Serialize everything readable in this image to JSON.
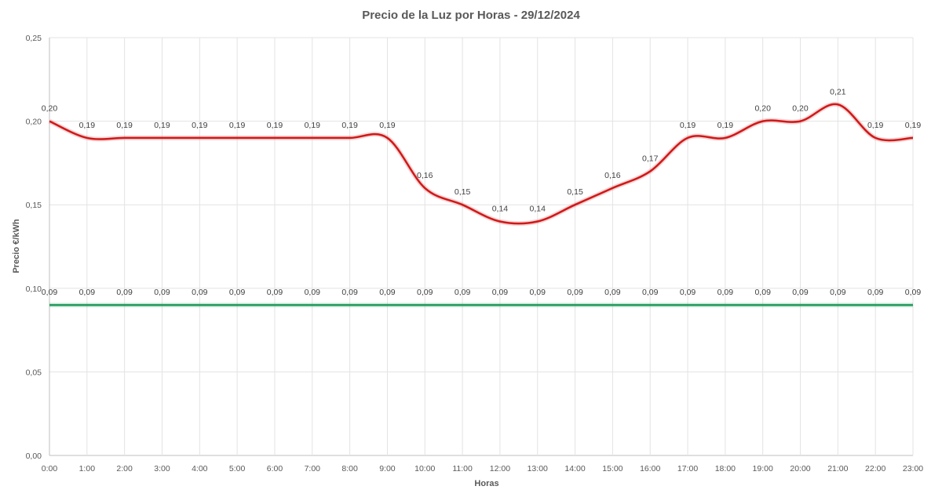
{
  "chart_data": {
    "type": "line",
    "title": "Precio de la Luz por Horas - 29/12/2024",
    "xlabel": "Horas",
    "ylabel": "Precio €/kWh",
    "ylim": [
      0,
      0.25
    ],
    "yticks": [
      "0,00",
      "0,05",
      "0,10",
      "0,15",
      "0,20",
      "0,25"
    ],
    "grid": true,
    "legend": "none",
    "smooth": true,
    "categories": [
      "0:00",
      "1:00",
      "2:00",
      "3:00",
      "4:00",
      "5:00",
      "6:00",
      "7:00",
      "8:00",
      "9:00",
      "10:00",
      "11:00",
      "12:00",
      "13:00",
      "14:00",
      "15:00",
      "16:00",
      "17:00",
      "18:00",
      "19:00",
      "20:00",
      "21:00",
      "22:00",
      "23:00"
    ],
    "series": [
      {
        "color": "#d01818",
        "values": [
          0.2,
          0.19,
          0.19,
          0.19,
          0.19,
          0.19,
          0.19,
          0.19,
          0.19,
          0.19,
          0.16,
          0.15,
          0.14,
          0.14,
          0.15,
          0.16,
          0.17,
          0.19,
          0.19,
          0.2,
          0.2,
          0.21,
          0.19,
          0.19
        ],
        "labels": [
          "0,20",
          "0,19",
          "0,19",
          "0,19",
          "0,19",
          "0,19",
          "0,19",
          "0,19",
          "0,19",
          "0,19",
          "0,16",
          "0,15",
          "0,14",
          "0,14",
          "0,15",
          "0,16",
          "0,17",
          "0,19",
          "0,19",
          "0,20",
          "0,20",
          "0,21",
          "0,19",
          "0,19"
        ]
      },
      {
        "color": "#1e9a5a",
        "values": [
          0.09,
          0.09,
          0.09,
          0.09,
          0.09,
          0.09,
          0.09,
          0.09,
          0.09,
          0.09,
          0.09,
          0.09,
          0.09,
          0.09,
          0.09,
          0.09,
          0.09,
          0.09,
          0.09,
          0.09,
          0.09,
          0.09,
          0.09,
          0.09
        ],
        "labels": [
          "0,09",
          "0,09",
          "0,09",
          "0,09",
          "0,09",
          "0,09",
          "0,09",
          "0,09",
          "0,09",
          "0,09",
          "0,09",
          "0,09",
          "0,09",
          "0,09",
          "0,09",
          "0,09",
          "0,09",
          "0,09",
          "0,09",
          "0,09",
          "0,09",
          "0,09",
          "0,09",
          "0,09"
        ]
      }
    ]
  }
}
